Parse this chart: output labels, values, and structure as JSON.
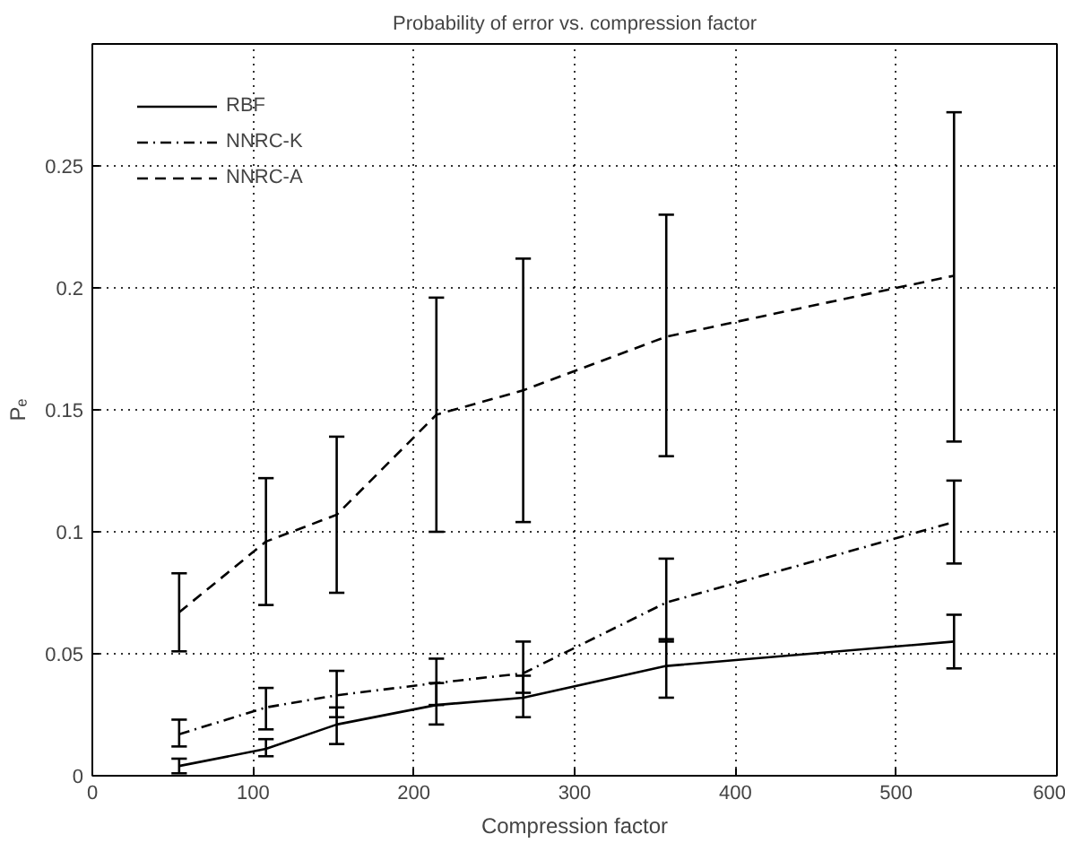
{
  "chart_data": {
    "type": "line",
    "title": "Probability of error vs. compression factor",
    "xlabel": "Compression factor",
    "ylabel": "Pₑ",
    "x": [
      54,
      108,
      152,
      214,
      268,
      357,
      536
    ],
    "xlim": [
      0,
      600
    ],
    "xticks": [
      0,
      100,
      200,
      300,
      400,
      500,
      600
    ],
    "ylim": [
      0,
      0.3
    ],
    "yticks": [
      0,
      0.05,
      0.1,
      0.15,
      0.2,
      0.25
    ],
    "grid": true,
    "legend": "top left",
    "marker": "none",
    "series": [
      {
        "name": "RBF",
        "color": "#000000",
        "line_style": "solid",
        "values": [
          0.004,
          0.011,
          0.021,
          0.029,
          0.032,
          0.045,
          0.055
        ],
        "errors": [
          [
            0.001,
            0.007
          ],
          [
            0.008,
            0.015
          ],
          [
            0.013,
            0.028
          ],
          [
            0.021,
            0.038
          ],
          [
            0.024,
            0.041
          ],
          [
            0.032,
            0.056
          ],
          [
            0.044,
            0.066
          ]
        ]
      },
      {
        "name": "NNRC-K",
        "color": "#000000",
        "line_style": "dashdot",
        "values": [
          0.017,
          0.028,
          0.033,
          0.038,
          0.042,
          0.071,
          0.104
        ],
        "errors": [
          [
            0.012,
            0.023
          ],
          [
            0.019,
            0.036
          ],
          [
            0.024,
            0.043
          ],
          [
            0.029,
            0.048
          ],
          [
            0.034,
            0.055
          ],
          [
            0.055,
            0.089
          ],
          [
            0.087,
            0.121
          ]
        ]
      },
      {
        "name": "NNRC-A",
        "color": "#000000",
        "line_style": "dashed",
        "values": [
          0.067,
          0.096,
          0.107,
          0.148,
          0.158,
          0.18,
          0.205
        ],
        "errors": [
          [
            0.051,
            0.083
          ],
          [
            0.07,
            0.122
          ],
          [
            0.075,
            0.139
          ],
          [
            0.1,
            0.196
          ],
          [
            0.104,
            0.212
          ],
          [
            0.131,
            0.23
          ],
          [
            0.137,
            0.272
          ]
        ]
      }
    ]
  }
}
